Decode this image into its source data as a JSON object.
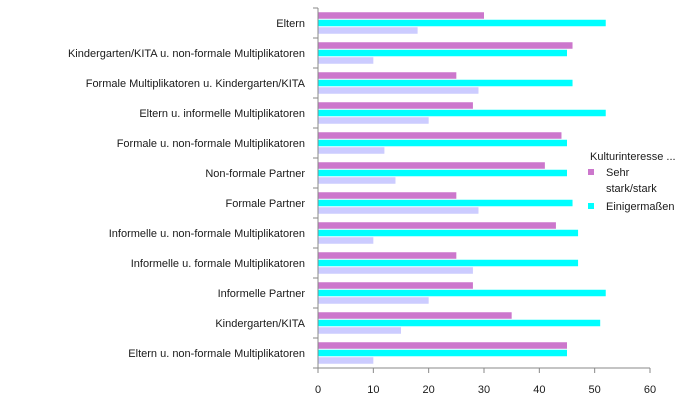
{
  "chart_data": {
    "type": "bar",
    "orientation": "horizontal",
    "title": "",
    "xlabel": "",
    "ylabel": "",
    "xlim": [
      0,
      60
    ],
    "xticks": [
      0,
      10,
      20,
      30,
      40,
      50,
      60
    ],
    "grid": false,
    "legend": {
      "title": "Kulturinteresse ...",
      "position": "right"
    },
    "categories": [
      "Eltern",
      "Kindergarten/KITA u. non-formale Multiplikatoren",
      "Formale Multiplikatoren u. Kindergarten/KITA",
      "Eltern u. informelle Multiplikatoren",
      "Formale u. non-formale Multiplikatoren",
      "Non-formale Partner",
      "Formale Partner",
      "Informelle u. non-formale Multiplikatoren",
      "Informelle u. formale Multiplikatoren",
      "Informelle Partner",
      "Kindergarten/KITA",
      "Eltern u. non-formale Multiplikatoren"
    ],
    "series": [
      {
        "name": "Sehr stark/stark",
        "color": "#cc77cc",
        "legend_lines": [
          "Sehr",
          "stark/stark"
        ],
        "values": [
          30,
          46,
          25,
          28,
          44,
          41,
          25,
          43,
          25,
          28,
          35,
          45
        ]
      },
      {
        "name": "Einigermaßen",
        "color": "#00ffff",
        "legend_lines": [
          "Einigermaßen"
        ],
        "values": [
          52,
          45,
          46,
          52,
          45,
          45,
          46,
          47,
          47,
          52,
          51,
          45
        ]
      },
      {
        "name": "",
        "color": "#ccccff",
        "legend_lines": [],
        "values": [
          18,
          10,
          29,
          20,
          12,
          14,
          29,
          10,
          28,
          20,
          15,
          10
        ]
      }
    ]
  }
}
